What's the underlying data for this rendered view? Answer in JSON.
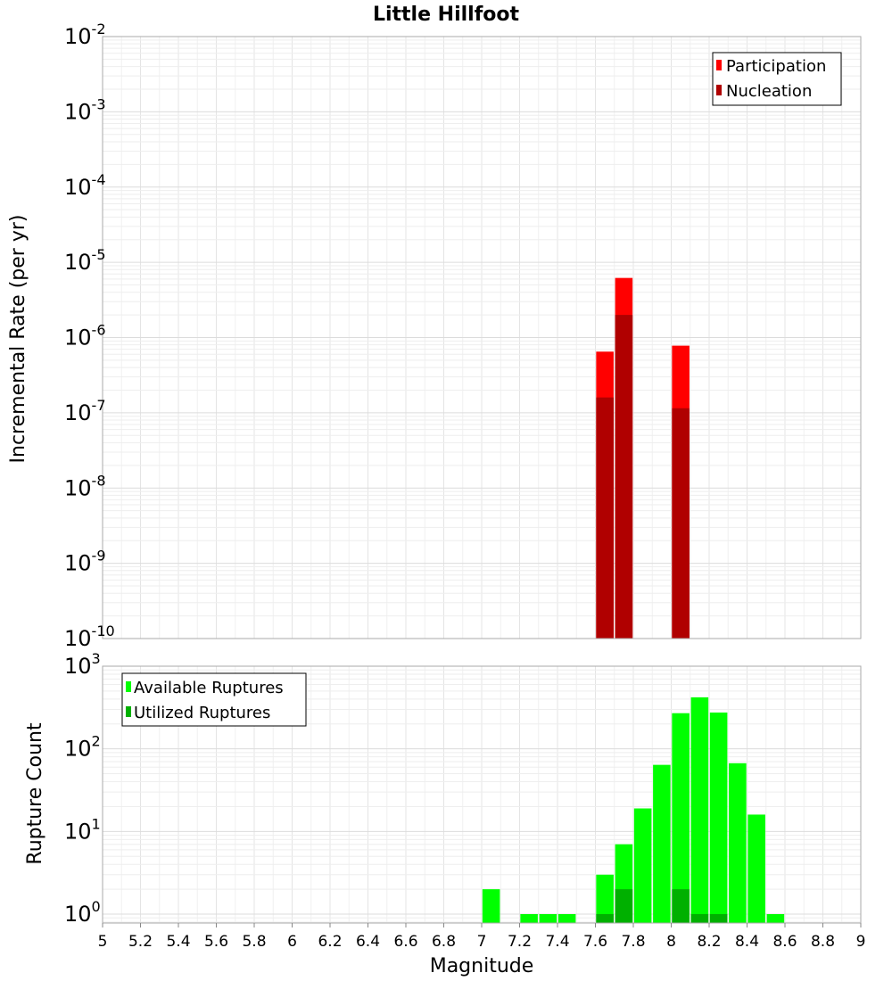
{
  "chart_data": [
    {
      "type": "bar",
      "title": "Little Hillfoot",
      "ylabel": "Incremental Rate (per yr)",
      "yscale": "log",
      "ylim": [
        1e-10,
        0.01
      ],
      "xlim": [
        5,
        9
      ],
      "legend_position": "top-right",
      "series": [
        {
          "name": "Participation",
          "color": "#ff0000",
          "x": [
            7.65,
            7.75,
            8.05
          ],
          "values": [
            6.5e-07,
            6.2e-06,
            7.8e-07
          ]
        },
        {
          "name": "Nucleation",
          "color": "#b00000",
          "x": [
            7.65,
            7.75,
            8.05
          ],
          "values": [
            1.6e-07,
            2e-06,
            1.15e-07
          ]
        }
      ]
    },
    {
      "type": "bar",
      "xlabel": "Magnitude",
      "ylabel": "Rupture Count",
      "yscale": "log",
      "ylim": [
        0.78,
        1000
      ],
      "xlim": [
        5,
        9
      ],
      "legend_position": "top-left",
      "series": [
        {
          "name": "Available Ruptures",
          "color": "#00ff00",
          "x": [
            7.05,
            7.25,
            7.35,
            7.45,
            7.65,
            7.75,
            7.85,
            7.95,
            8.05,
            8.15,
            8.25,
            8.35,
            8.45,
            8.55
          ],
          "values": [
            2,
            1,
            1,
            1,
            3,
            7,
            19,
            64,
            270,
            420,
            275,
            67,
            16,
            1
          ]
        },
        {
          "name": "Utilized Ruptures",
          "color": "#00b000",
          "x": [
            7.65,
            7.75,
            8.05,
            8.15,
            8.25
          ],
          "values": [
            1,
            2,
            2,
            1,
            1
          ]
        }
      ]
    }
  ],
  "x_ticks": [
    "5",
    "5.2",
    "5.4",
    "5.6",
    "5.8",
    "6",
    "6.2",
    "6.4",
    "6.6",
    "6.8",
    "7",
    "7.2",
    "7.4",
    "7.6",
    "7.8",
    "8",
    "8.2",
    "8.4",
    "8.6",
    "8.8",
    "9"
  ],
  "top_y_ticks": [
    {
      "base": "10",
      "exp": "-10"
    },
    {
      "base": "10",
      "exp": "-9"
    },
    {
      "base": "10",
      "exp": "-8"
    },
    {
      "base": "10",
      "exp": "-7"
    },
    {
      "base": "10",
      "exp": "-6"
    },
    {
      "base": "10",
      "exp": "-5"
    },
    {
      "base": "10",
      "exp": "-4"
    },
    {
      "base": "10",
      "exp": "-3"
    },
    {
      "base": "10",
      "exp": "-2"
    }
  ],
  "bottom_y_ticks": [
    {
      "base": "10",
      "exp": "0"
    },
    {
      "base": "10",
      "exp": "1"
    },
    {
      "base": "10",
      "exp": "2"
    },
    {
      "base": "10",
      "exp": "3"
    }
  ]
}
